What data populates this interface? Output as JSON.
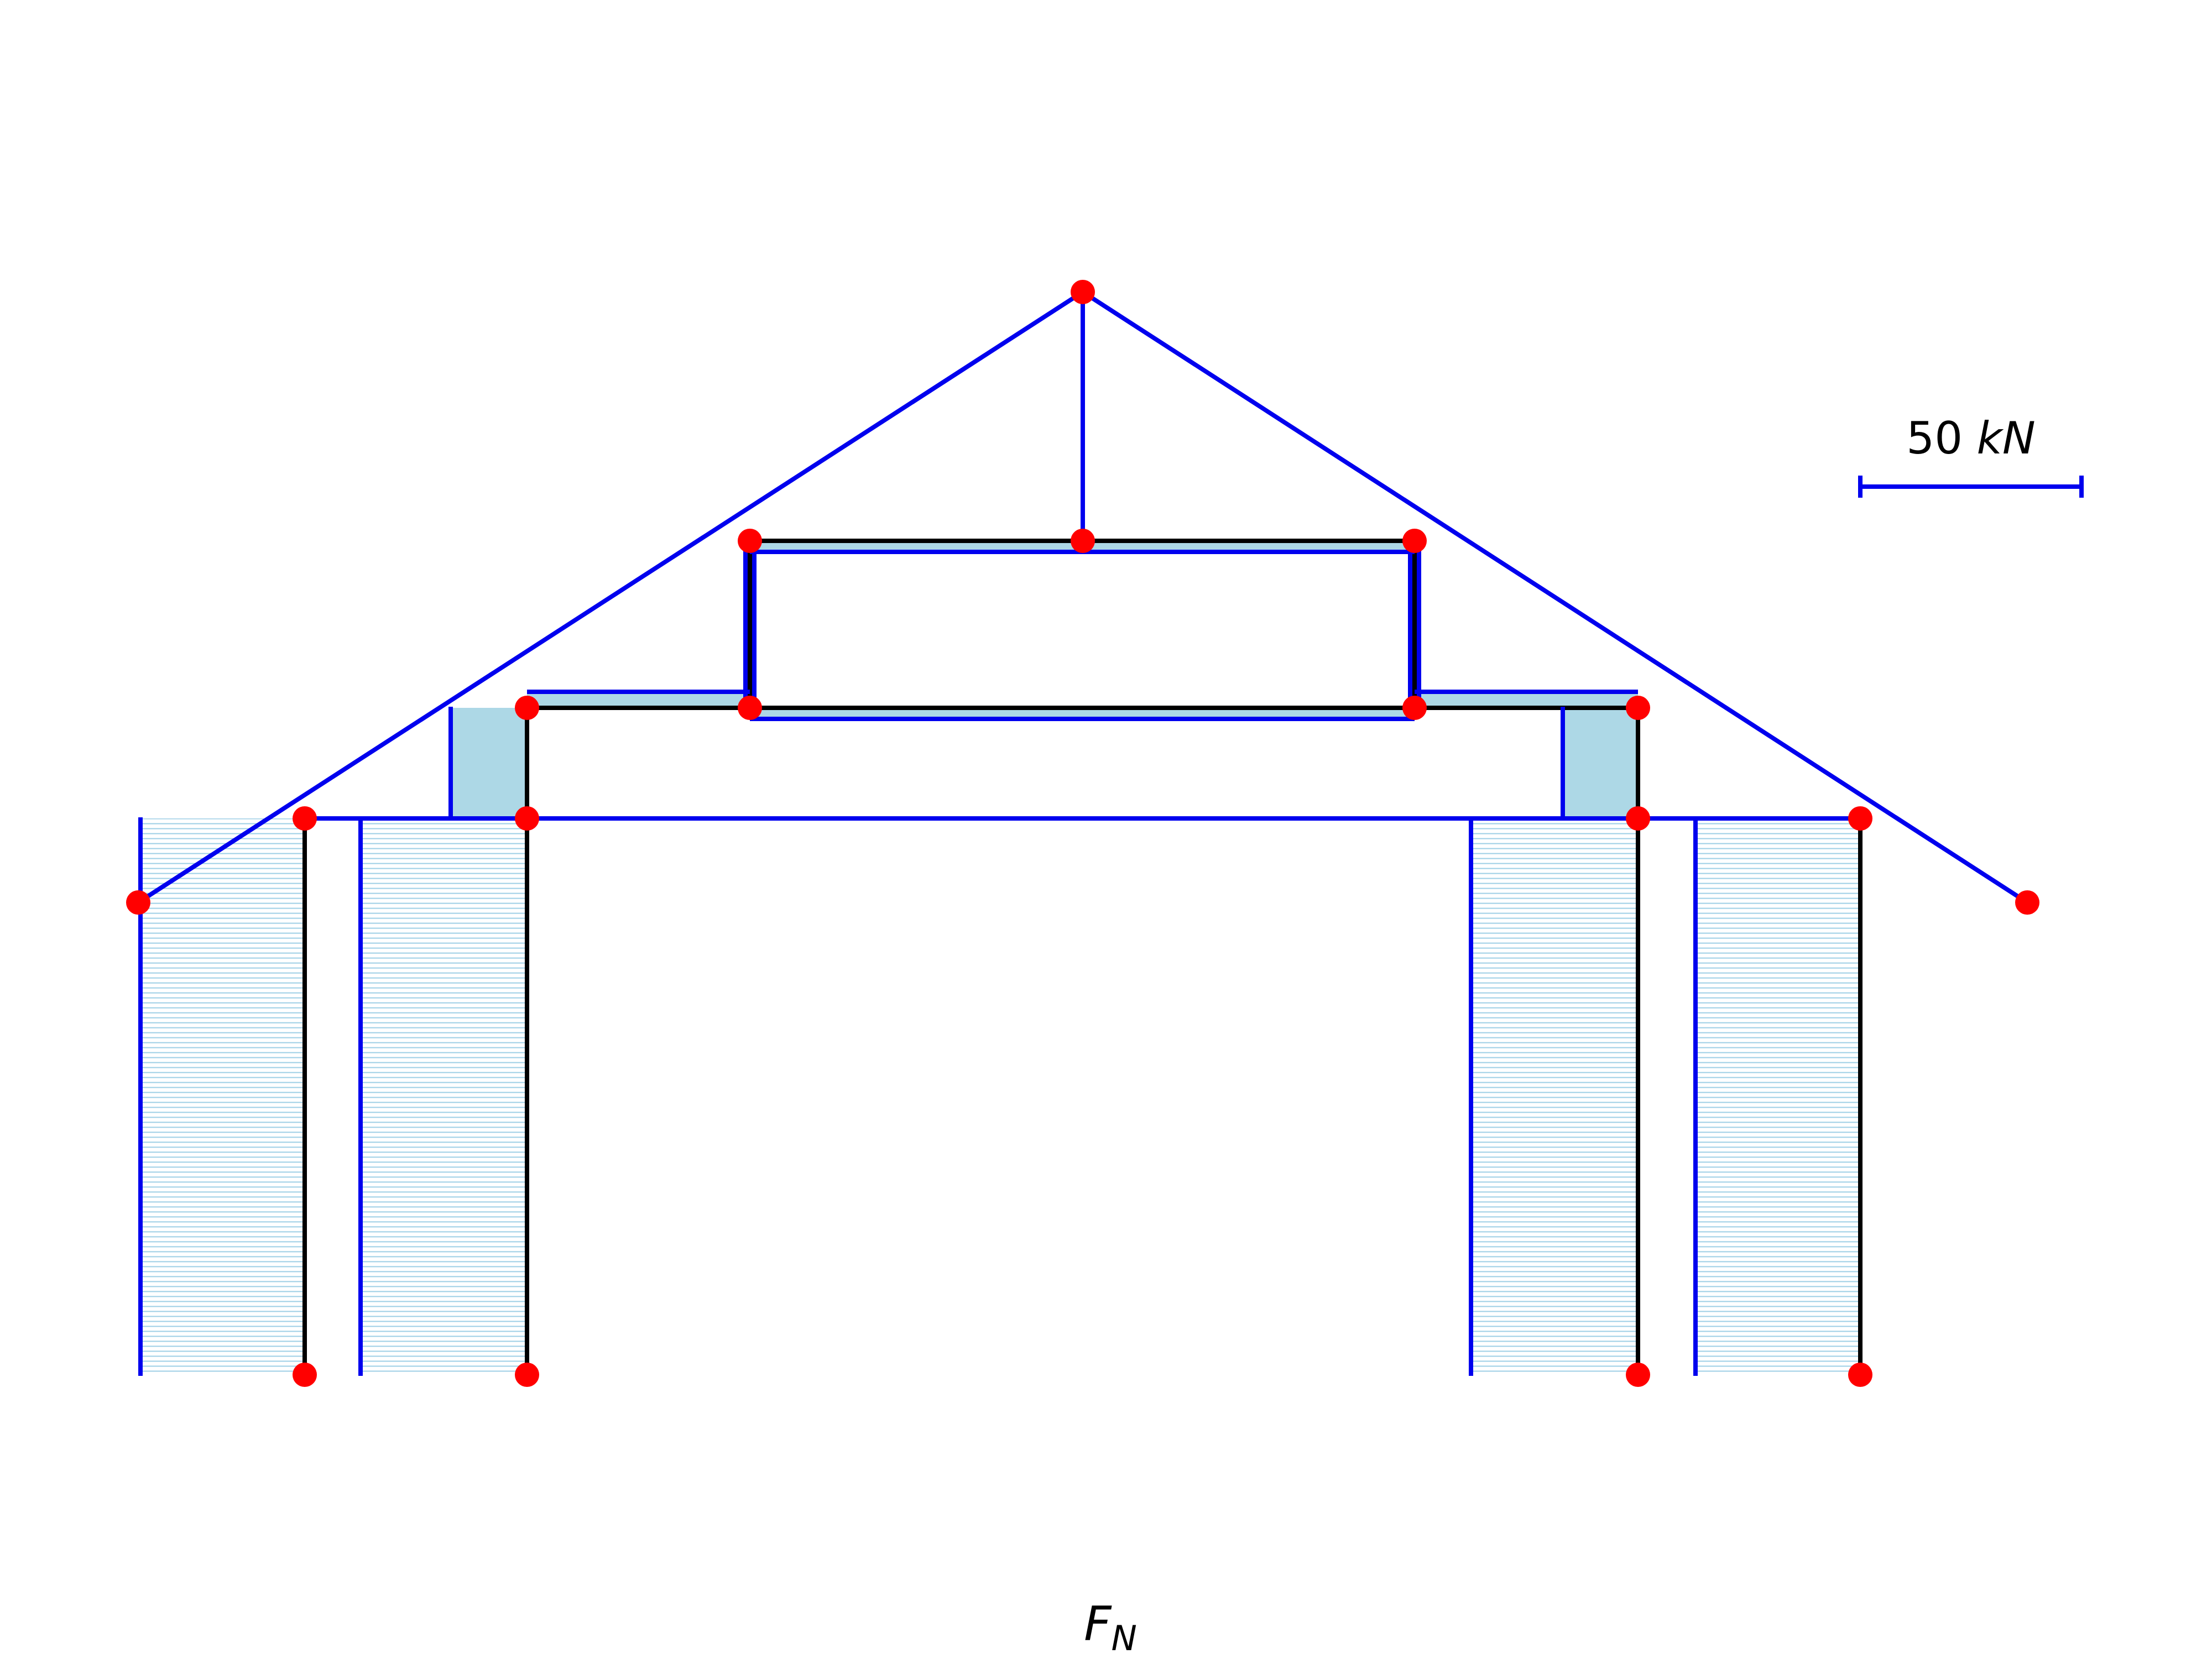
{
  "scale_bar": {
    "value": "50",
    "unit": "kN"
  },
  "diagram_title": {
    "symbol": "F",
    "subscript": "N"
  },
  "colors": {
    "structure": "#000000",
    "force_line": "#0000ee",
    "node": "#ff0000",
    "fill": "#add8e6",
    "hatch": "#9ecfe6"
  }
}
